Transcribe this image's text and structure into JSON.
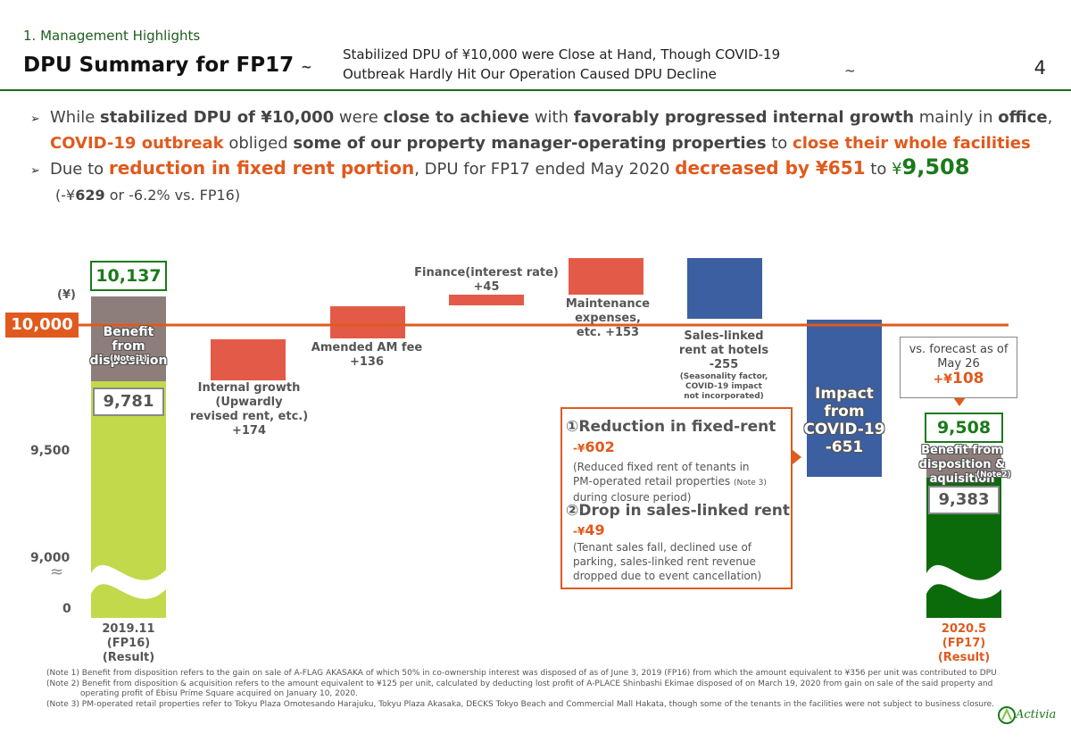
{
  "header": {
    "section": "1. Management Highlights",
    "title": "DPU Summary for FP17",
    "tilde_left": "~",
    "tilde_right": "~",
    "subtitle_line1": "Stabilized DPU of ¥10,000 were Close at Hand, Though COVID-19",
    "subtitle_line2": "Outbreak Hardly Hit Our Operation Caused DPU Decline",
    "page_number": "4"
  },
  "bullets": {
    "b1": {
      "t1": "While ",
      "t2": "stabilized DPU of ¥10,000",
      "t3": " were ",
      "t4": "close to achieve",
      "t5": " with ",
      "t6": "favorably progressed internal growth",
      "t7": " mainly in ",
      "t8": "office",
      "t9": ",",
      "t10": "COVID-19 outbreak",
      "t11": " obliged ",
      "t12": "some of our property manager-operating properties",
      "t13": " to ",
      "t14": "close their whole facilities"
    },
    "b2": {
      "t1": "Due to ",
      "t2": "reduction in fixed rent portion",
      "t3": ", DPU for FP17 ended May 2020 ",
      "t4": "decreased by ¥651",
      "t5": " to ",
      "t6": "¥",
      "t7": "9,508",
      "t8": "(-¥",
      "t9": "629",
      "t10": " or -6.2% vs. FP16)"
    }
  },
  "chart_data": {
    "type": "waterfall",
    "unit_label": "(¥)",
    "y_ticks": [
      "9,000",
      "9,500"
    ],
    "y_zero": "0",
    "reference_line": {
      "value": 10000,
      "label": "10,000"
    },
    "bars": [
      {
        "name": "FP16 Result",
        "label": "2019.11\n(FP16)\n(Result)",
        "total": 10137,
        "base": 9781,
        "benefit": 356,
        "benefit_label": "Benefit from disposition",
        "benefit_note": "(Note 1)",
        "total_label": "10,137",
        "base_label": "9,781"
      },
      {
        "name": "Internal growth",
        "label": "Internal growth\n(Upwardly\nrevised rent, etc.)\n+174",
        "delta": 174
      },
      {
        "name": "Amended AM fee",
        "label": "Amended AM fee\n+136",
        "delta": 136
      },
      {
        "name": "Finance(interest rate)",
        "label": "Finance(interest rate)\n+45",
        "delta": 45
      },
      {
        "name": "Maintenance expenses",
        "label": "Maintenance expenses,\netc. +153",
        "delta": 153
      },
      {
        "name": "Sales-linked rent at hotels",
        "label": "Sales-linked\nrent at hotels\n-255",
        "sub": "(Seasonality factor,\nCOVID-19 impact\nnot incorporated)",
        "delta": -255
      },
      {
        "name": "Impact from COVID-19",
        "label": "Impact\nfrom\nCOVID-19\n-651",
        "delta": -651
      },
      {
        "name": "FP17 Result",
        "label": "2020.5\n(FP17)\n(Result)",
        "total": 9508,
        "base": 9383,
        "benefit": 125,
        "benefit_label": "Benefit from disposition & aquisition",
        "benefit_note": "(Note2)",
        "total_label": "9,508",
        "base_label": "9,383"
      }
    ],
    "forecast_note": {
      "line1": "vs. forecast as of",
      "line2": "May 26",
      "prefix": "+¥",
      "value": "108"
    }
  },
  "callout": {
    "i1_head": "①Reduction in fixed-rent",
    "i1_val_prefix": "-¥",
    "i1_val": "602",
    "i1_desc1": "(Reduced fixed rent of tenants in",
    "i1_desc2": "PM-operated retail properties ",
    "i1_note": "(Note 3)",
    "i1_desc3": "during closure period)",
    "i2_head": "②Drop in sales-linked rent",
    "i2_val_prefix": "-¥",
    "i2_val": "49",
    "i2_desc1": "(Tenant sales fall, declined use of",
    "i2_desc2": "parking, sales-linked rent revenue",
    "i2_desc3": "dropped due to event cancellation)"
  },
  "notes": [
    "(Note 1) Benefit from disposition refers to the gain on sale of A-FLAG AKASAKA of which 50% in co-ownership interest was disposed of as of June 3, 2019 (FP16) from which the amount equivalent to ¥356 per unit was contributed to DPU",
    "(Note 2) Benefit from disposition & acquisition refers to the amount equivalent to ¥125 per unit, calculated by deducting lost profit of A-PLACE Shinbashi Ekimae disposed of on March 19, 2020 from gain on sale of the said property and",
    "operating profit of Ebisu Prime Square acquired on January 10, 2020.",
    "(Note 3) PM-operated retail properties refer to Tokyu Plaza Omotesando Harajuku, Tokyu Plaza Akasaka, DECKS Tokyo Beach and Commercial Mall Hakata, though some of the tenants in the facilities were not subject to business closure."
  ],
  "logo": "Activia",
  "colors": {
    "green": "#1a7a1a",
    "lime": "#c3d94c",
    "orange": "#e05a1d",
    "red_bar": "#e35b48",
    "blue_bar": "#3b5fa0",
    "grey_bar": "#8e7e7b",
    "dark_green": "#0b6b0b"
  }
}
